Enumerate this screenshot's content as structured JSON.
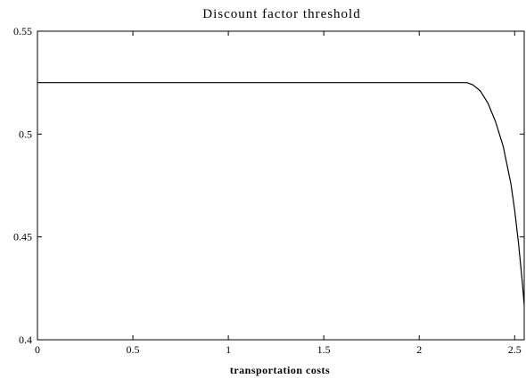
{
  "chart_data": {
    "type": "line",
    "title": "Discount factor threshold",
    "xlabel": "transportation costs",
    "ylabel": "",
    "xlim": [
      0,
      2.55
    ],
    "ylim": [
      0.4,
      0.55
    ],
    "xticks": [
      {
        "value": 0,
        "label": "0"
      },
      {
        "value": 0.5,
        "label": "0.5"
      },
      {
        "value": 1,
        "label": "1"
      },
      {
        "value": 1.5,
        "label": "1.5"
      },
      {
        "value": 2,
        "label": "2"
      },
      {
        "value": 2.5,
        "label": "2.5"
      }
    ],
    "yticks": [
      {
        "value": 0.4,
        "label": "0.4"
      },
      {
        "value": 0.45,
        "label": "0.45"
      },
      {
        "value": 0.5,
        "label": "0.5"
      },
      {
        "value": 0.55,
        "label": "0.55"
      }
    ],
    "grid": false,
    "line_color": "#000000",
    "series": [
      {
        "x": [
          0,
          0.5,
          1,
          1.5,
          2,
          2.2,
          2.25,
          2.28,
          2.32,
          2.36,
          2.4,
          2.44,
          2.48,
          2.5,
          2.52,
          2.54,
          2.55
        ],
        "y": [
          0.525,
          0.525,
          0.525,
          0.525,
          0.525,
          0.525,
          0.525,
          0.524,
          0.521,
          0.515,
          0.506,
          0.494,
          0.476,
          0.463,
          0.447,
          0.428,
          0.417
        ]
      }
    ]
  }
}
